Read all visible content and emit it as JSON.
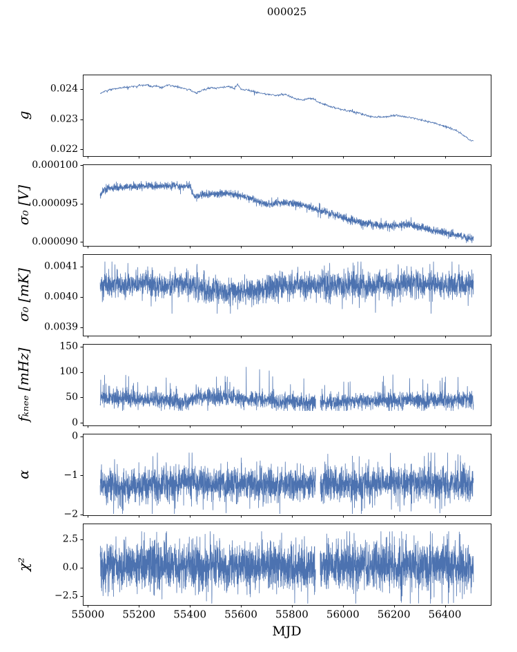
{
  "chart_data": {
    "type": "line",
    "title": "000025",
    "xlabel": "MJD",
    "line_color": "#4c72b0",
    "axis_color": "#000000",
    "x_range": [
      54980,
      56580
    ],
    "x_data_range": [
      55048,
      56512
    ],
    "x_ticks": {
      "values": [
        55000,
        55200,
        55400,
        55600,
        55800,
        56000,
        56200,
        56400
      ],
      "labels": [
        "55000",
        "55200",
        "55400",
        "55600",
        "55800",
        "56000",
        "56200",
        "56400"
      ]
    },
    "panels": [
      {
        "ylabel": "g",
        "ylim": [
          0.02178,
          0.02448
        ],
        "yticks": {
          "values": [
            0.024,
            0.023,
            0.022
          ],
          "labels": [
            "0.024",
            "0.023",
            "0.022"
          ]
        },
        "n_points": 1000,
        "noise_sigma": 1.8e-05,
        "spike_prob": 0.02,
        "spike_mult": 3,
        "clip": [
          0.02205,
          0.02438
        ],
        "gaps": [],
        "trend": [
          [
            55048,
            0.02385
          ],
          [
            55065,
            0.02392
          ],
          [
            55085,
            0.02398
          ],
          [
            55110,
            0.02402
          ],
          [
            55140,
            0.02405
          ],
          [
            55170,
            0.02408
          ],
          [
            55200,
            0.02411
          ],
          [
            55230,
            0.02414
          ],
          [
            55250,
            0.02407
          ],
          [
            55270,
            0.02411
          ],
          [
            55290,
            0.02404
          ],
          [
            55310,
            0.02413
          ],
          [
            55340,
            0.02409
          ],
          [
            55370,
            0.02404
          ],
          [
            55400,
            0.02398
          ],
          [
            55425,
            0.02386
          ],
          [
            55445,
            0.02395
          ],
          [
            55470,
            0.02402
          ],
          [
            55500,
            0.02404
          ],
          [
            55530,
            0.02406
          ],
          [
            55555,
            0.02408
          ],
          [
            55575,
            0.02402
          ],
          [
            55587,
            0.02416
          ],
          [
            55600,
            0.024
          ],
          [
            55620,
            0.02397
          ],
          [
            55645,
            0.02392
          ],
          [
            55670,
            0.02388
          ],
          [
            55695,
            0.02383
          ],
          [
            55720,
            0.02381
          ],
          [
            55750,
            0.02379
          ],
          [
            55770,
            0.02383
          ],
          [
            55790,
            0.02376
          ],
          [
            55810,
            0.02369
          ],
          [
            55835,
            0.02364
          ],
          [
            55860,
            0.02367
          ],
          [
            55880,
            0.02371
          ],
          [
            55900,
            0.02358
          ],
          [
            55925,
            0.0235
          ],
          [
            55950,
            0.02342
          ],
          [
            55975,
            0.02336
          ],
          [
            56000,
            0.02331
          ],
          [
            56030,
            0.02327
          ],
          [
            56060,
            0.02321
          ],
          [
            56090,
            0.02313
          ],
          [
            56120,
            0.02308
          ],
          [
            56150,
            0.02307
          ],
          [
            56180,
            0.0231
          ],
          [
            56210,
            0.02312
          ],
          [
            56240,
            0.02309
          ],
          [
            56270,
            0.02305
          ],
          [
            56300,
            0.02299
          ],
          [
            56330,
            0.02293
          ],
          [
            56360,
            0.02288
          ],
          [
            56390,
            0.02279
          ],
          [
            56420,
            0.02271
          ],
          [
            56450,
            0.02261
          ],
          [
            56475,
            0.02245
          ],
          [
            56495,
            0.02233
          ],
          [
            56512,
            0.02228
          ]
        ]
      },
      {
        "ylabel": "σ₀ [V]",
        "ylim": [
          8.95e-05,
          0.0001001
        ],
        "yticks": {
          "values": [
            0.0001,
            9.5e-05,
            9e-05
          ],
          "labels": [
            "0.000100",
            "0.000095",
            "0.000090"
          ]
        },
        "n_points": 2600,
        "noise_sigma": 2.3e-07,
        "spike_prob": 0.04,
        "spike_mult": 2,
        "clip": [
          8.99e-05,
          9.79e-05
        ],
        "gaps": [],
        "trend": [
          [
            55048,
            9.6e-05
          ],
          [
            55060,
            9.67e-05
          ],
          [
            55080,
            9.7e-05
          ],
          [
            55120,
            9.71e-05
          ],
          [
            55160,
            9.72e-05
          ],
          [
            55200,
            9.72e-05
          ],
          [
            55240,
            9.73e-05
          ],
          [
            55280,
            9.72e-05
          ],
          [
            55320,
            9.73e-05
          ],
          [
            55360,
            9.73e-05
          ],
          [
            55400,
            9.72e-05
          ],
          [
            55418,
            9.59e-05
          ],
          [
            55440,
            9.61e-05
          ],
          [
            55470,
            9.62e-05
          ],
          [
            55510,
            9.63e-05
          ],
          [
            55550,
            9.63e-05
          ],
          [
            55590,
            9.61e-05
          ],
          [
            55620,
            9.58e-05
          ],
          [
            55650,
            9.55e-05
          ],
          [
            55680,
            9.51e-05
          ],
          [
            55710,
            9.49e-05
          ],
          [
            55740,
            9.5e-05
          ],
          [
            55770,
            9.51e-05
          ],
          [
            55800,
            9.51e-05
          ],
          [
            55830,
            9.49e-05
          ],
          [
            55860,
            9.46e-05
          ],
          [
            55890,
            9.43e-05
          ],
          [
            55920,
            9.4e-05
          ],
          [
            55950,
            9.37e-05
          ],
          [
            55980,
            9.34e-05
          ],
          [
            56010,
            9.31e-05
          ],
          [
            56040,
            9.28e-05
          ],
          [
            56070,
            9.26e-05
          ],
          [
            56100,
            9.24e-05
          ],
          [
            56130,
            9.22e-05
          ],
          [
            56160,
            9.21e-05
          ],
          [
            56190,
            9.21e-05
          ],
          [
            56220,
            9.22e-05
          ],
          [
            56250,
            9.23e-05
          ],
          [
            56280,
            9.21e-05
          ],
          [
            56310,
            9.19e-05
          ],
          [
            56340,
            9.16e-05
          ],
          [
            56370,
            9.14e-05
          ],
          [
            56400,
            9.12e-05
          ],
          [
            56430,
            9.1e-05
          ],
          [
            56460,
            9.08e-05
          ],
          [
            56490,
            9.05e-05
          ],
          [
            56512,
            9.04e-05
          ]
        ]
      },
      {
        "ylabel": "σ₀ [mK]",
        "ylim": [
          0.003872,
          0.00414
        ],
        "yticks": {
          "values": [
            0.0041,
            0.004,
            0.0039
          ],
          "labels": [
            "0.0041",
            "0.0040",
            "0.0039"
          ]
        },
        "n_points": 2600,
        "noise_sigma": 2e-05,
        "spike_prob": 0.06,
        "spike_mult": 2,
        "clip": [
          0.003945,
          0.004115
        ],
        "gaps": [],
        "trend": [
          [
            55048,
            0.004038
          ],
          [
            55100,
            0.004042
          ],
          [
            55150,
            0.00404
          ],
          [
            55200,
            0.004045
          ],
          [
            55250,
            0.004043
          ],
          [
            55300,
            0.00404
          ],
          [
            55350,
            0.00404
          ],
          [
            55400,
            0.004042
          ],
          [
            55430,
            0.004038
          ],
          [
            55460,
            0.004022
          ],
          [
            55500,
            0.00402
          ],
          [
            55550,
            0.004019
          ],
          [
            55600,
            0.004018
          ],
          [
            55640,
            0.00402
          ],
          [
            55680,
            0.004026
          ],
          [
            55720,
            0.00403
          ],
          [
            55760,
            0.004034
          ],
          [
            55800,
            0.004036
          ],
          [
            55850,
            0.004038
          ],
          [
            55900,
            0.00404
          ],
          [
            55950,
            0.00404
          ],
          [
            56000,
            0.00404
          ],
          [
            56050,
            0.004039
          ],
          [
            56100,
            0.004038
          ],
          [
            56150,
            0.00404
          ],
          [
            56200,
            0.004041
          ],
          [
            56250,
            0.004041
          ],
          [
            56300,
            0.004042
          ],
          [
            56350,
            0.004041
          ],
          [
            56400,
            0.00404
          ],
          [
            56450,
            0.004041
          ],
          [
            56512,
            0.004042
          ]
        ]
      },
      {
        "ylabel": "fₖₙₑₑ [mHz]",
        "ylim": [
          -5,
          155
        ],
        "yticks": {
          "values": [
            150,
            100,
            50,
            0
          ],
          "labels": [
            "150",
            "100",
            "50",
            "0"
          ]
        },
        "n_points": 2600,
        "noise_sigma": 8,
        "spike_prob": 0.04,
        "spike_mult": 1.8,
        "up_prob": 0.025,
        "up_max": 55,
        "clip": [
          24,
          146
        ],
        "gaps": [
          [
            55893,
            55911
          ]
        ],
        "trend": [
          [
            55048,
            47
          ],
          [
            55100,
            50
          ],
          [
            55150,
            49
          ],
          [
            55200,
            46
          ],
          [
            55250,
            47
          ],
          [
            55300,
            44
          ],
          [
            55350,
            40
          ],
          [
            55400,
            42
          ],
          [
            55425,
            55
          ],
          [
            55460,
            50
          ],
          [
            55500,
            48
          ],
          [
            55550,
            50
          ],
          [
            55600,
            47
          ],
          [
            55650,
            46
          ],
          [
            55700,
            44
          ],
          [
            55750,
            43
          ],
          [
            55800,
            41
          ],
          [
            55850,
            40
          ],
          [
            55900,
            39
          ],
          [
            55950,
            40
          ],
          [
            56000,
            41
          ],
          [
            56050,
            43
          ],
          [
            56100,
            45
          ],
          [
            56150,
            44
          ],
          [
            56200,
            43
          ],
          [
            56250,
            43
          ],
          [
            56300,
            42
          ],
          [
            56350,
            43
          ],
          [
            56400,
            44
          ],
          [
            56450,
            45
          ],
          [
            56512,
            45
          ]
        ]
      },
      {
        "ylabel": "α",
        "ylim": [
          -2.02,
          0.07
        ],
        "yticks": {
          "values": [
            0,
            -1,
            -2
          ],
          "labels": [
            "0",
            "−1",
            "−2"
          ]
        },
        "n_points": 2800,
        "noise_sigma": 0.21,
        "spike_prob": 0.06,
        "spike_mult": 2.1,
        "clip": [
          -1.98,
          -0.42
        ],
        "gaps": [
          [
            55893,
            55911
          ]
        ],
        "trend": [
          [
            55048,
            -1.3
          ],
          [
            55100,
            -1.28
          ],
          [
            55150,
            -1.3
          ],
          [
            55200,
            -1.28
          ],
          [
            55250,
            -1.25
          ],
          [
            55300,
            -1.22
          ],
          [
            55350,
            -1.18
          ],
          [
            55400,
            -1.15
          ],
          [
            55450,
            -1.18
          ],
          [
            55500,
            -1.2
          ],
          [
            55550,
            -1.22
          ],
          [
            55600,
            -1.25
          ],
          [
            55650,
            -1.22
          ],
          [
            55700,
            -1.2
          ],
          [
            55750,
            -1.22
          ],
          [
            55800,
            -1.25
          ],
          [
            55850,
            -1.22
          ],
          [
            55900,
            -1.2
          ],
          [
            55950,
            -1.22
          ],
          [
            56000,
            -1.25
          ],
          [
            56050,
            -1.22
          ],
          [
            56100,
            -1.2
          ],
          [
            56150,
            -1.18
          ],
          [
            56200,
            -1.16
          ],
          [
            56250,
            -1.18
          ],
          [
            56300,
            -1.2
          ],
          [
            56350,
            -1.2
          ],
          [
            56400,
            -1.2
          ],
          [
            56450,
            -1.2
          ],
          [
            56512,
            -1.2
          ]
        ]
      },
      {
        "ylabel": "χ²",
        "ylim": [
          -3.3,
          3.9
        ],
        "yticks": {
          "values": [
            2.5,
            0.0,
            -2.5
          ],
          "labels": [
            "2.5",
            "0.0",
            "−2.5"
          ]
        },
        "n_points": 3000,
        "noise_sigma": 1.0,
        "spike_prob": 0.06,
        "spike_mult": 1.9,
        "clip": [
          -3.15,
          3.2
        ],
        "gaps": [
          [
            55893,
            55911
          ]
        ],
        "trend": [
          [
            55048,
            0.15
          ],
          [
            56512,
            0.15
          ]
        ]
      }
    ]
  }
}
